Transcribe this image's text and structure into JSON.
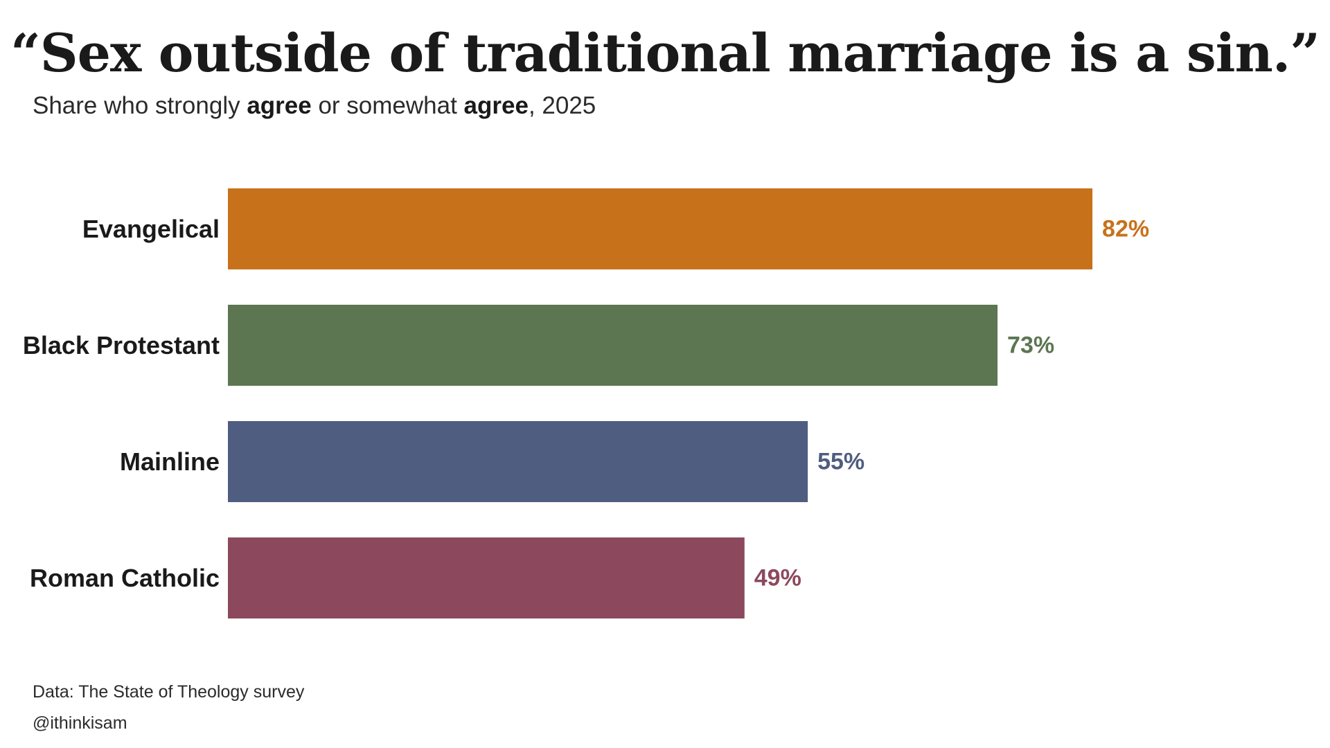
{
  "title": "“Sex outside of traditional marriage is a sin.”",
  "subtitle": {
    "part1": "Share who strongly ",
    "bold1": "agree",
    "part2": " or somewhat ",
    "bold2": "agree",
    "part3": ", 2025"
  },
  "chart_data": {
    "type": "bar",
    "orientation": "horizontal",
    "categories": [
      "Evangelical",
      "Black Protestant",
      "Mainline",
      "Roman Catholic"
    ],
    "values": [
      82,
      73,
      55,
      49
    ],
    "value_labels": [
      "82%",
      "73%",
      "55%",
      "49%"
    ],
    "colors": [
      "#c7721b",
      "#5c7652",
      "#4e5d80",
      "#8c495d"
    ],
    "xlim": [
      0,
      100
    ],
    "grid": false,
    "legend": "none"
  },
  "footer": {
    "source": "Data: The State of Theology survey",
    "handle": "@ithinkisam"
  }
}
